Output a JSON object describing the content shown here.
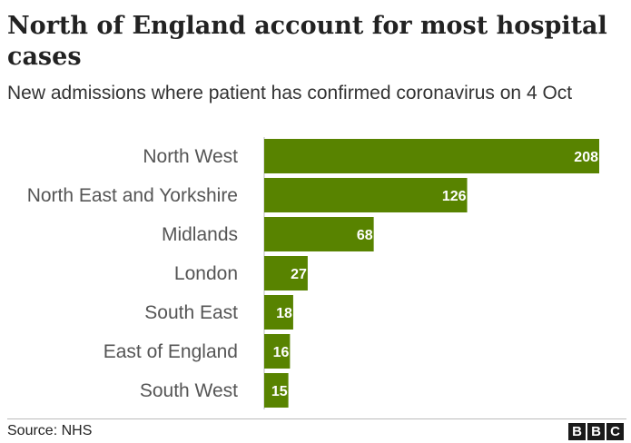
{
  "title": "North of England account for most hospital cases",
  "subtitle": "New admissions where patient has confirmed coronavirus on 4 Oct",
  "source": "Source: NHS",
  "logo": [
    "B",
    "B",
    "C"
  ],
  "colors": {
    "bar": "#588300"
  },
  "chart_data": {
    "type": "bar",
    "orientation": "horizontal",
    "title": "North of England account for most hospital cases",
    "subtitle": "New admissions where patient has confirmed coronavirus on 4 Oct",
    "categories": [
      "North West",
      "North East and Yorkshire",
      "Midlands",
      "London",
      "South East",
      "East of England",
      "South West"
    ],
    "values": [
      208,
      126,
      68,
      27,
      18,
      16,
      15
    ],
    "data_labels": true,
    "xlim": [
      0,
      208
    ],
    "grid": false,
    "legend": "none"
  }
}
